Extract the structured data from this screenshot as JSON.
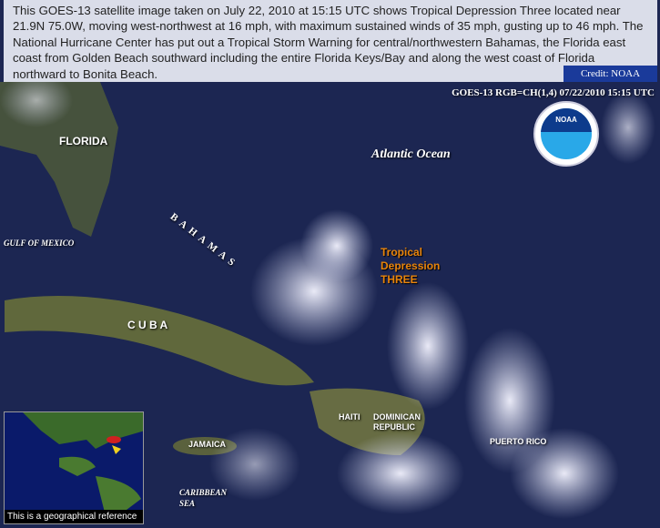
{
  "caption": {
    "text": "This GOES-13 satellite image taken on July 22, 2010 at 15:15 UTC shows Tropical Depression Three located near 21.9N 75.0W, moving west-northwest at 16 mph, with maximum sustained winds of 35 mph, gusting up to 46 mph. The National Hurricane Center has put out a Tropical Storm Warning for central/northwestern Bahamas, the Florida east coast from Golden Beach southward including the entire Florida Keys/Bay and along the west coast of Florida northward to Bonita Beach.",
    "credit": "Credit: NOAA"
  },
  "image": {
    "header": "GOES-13 RGB=CH(1,4)  07/22/2010 15:15 UTC",
    "logo": "NOAA",
    "labels": {
      "florida": "FLORIDA",
      "atlantic": "Atlantic   Ocean",
      "gulf": "GULF OF MEXICO",
      "bahamas": "BAHAMAS",
      "cuba": "C U B A",
      "haiti": "HAITI",
      "dr": "DOMINICAN\nREPUBLIC",
      "jamaica": "JAMAICA",
      "pr": "PUERTO RICO",
      "caribbean": "CARIBBEAN\nSEA"
    },
    "storm": [
      "Tropical",
      "Depression",
      "THREE"
    ],
    "inset_caption": "This is a geographical reference"
  },
  "colors": {
    "ocean": "#1a2450",
    "land": "#5a6a30",
    "cloud": "#f0f0ff",
    "storm_label": "#e8840a",
    "credit_bg": "#1a3a9a"
  }
}
